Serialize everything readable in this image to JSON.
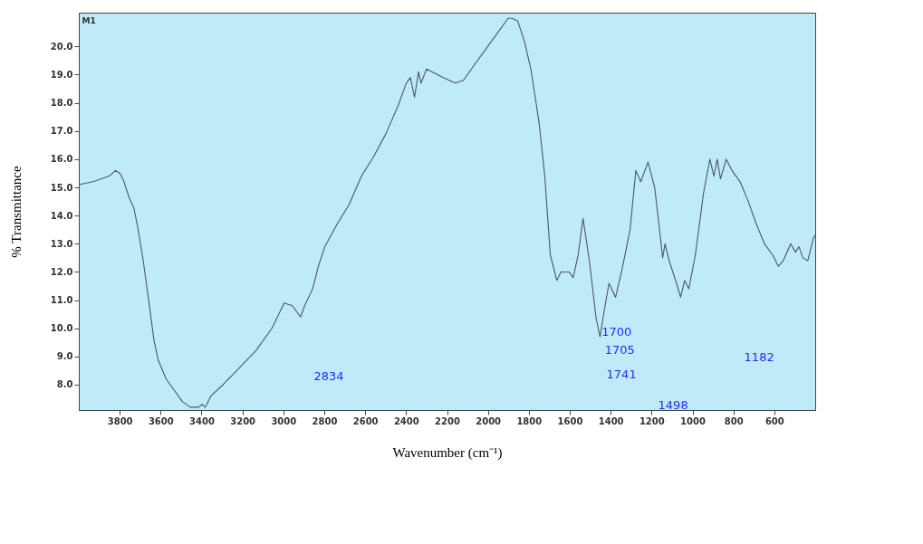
{
  "chart_data": {
    "type": "line",
    "xlabel": "Wavenumber (cm⁻¹)",
    "ylabel": "% Transmittance",
    "xlim": [
      4000,
      400
    ],
    "ylim": [
      7.1,
      21.2
    ],
    "xticks": [
      3800,
      3600,
      3400,
      3200,
      3000,
      2800,
      2600,
      2400,
      2200,
      2000,
      1800,
      1600,
      1400,
      1200,
      1000,
      800,
      600
    ],
    "yticks": [
      {
        "value": 8,
        "label": "8.0"
      },
      {
        "value": 9,
        "label": "9.0"
      },
      {
        "value": 10,
        "label": "10.0"
      },
      {
        "value": 11,
        "label": "11.0"
      },
      {
        "value": 12,
        "label": "12.0"
      },
      {
        "value": 13,
        "label": "13.0"
      },
      {
        "value": 14,
        "label": "14.0"
      },
      {
        "value": 15,
        "label": "15.0"
      },
      {
        "value": 16,
        "label": "16.0"
      },
      {
        "value": 17,
        "label": "17.0"
      },
      {
        "value": 18,
        "label": "18.0"
      },
      {
        "value": 19,
        "label": "19.0"
      },
      {
        "value": 20,
        "label": "20.0"
      }
    ],
    "grid": false,
    "marker": "none",
    "line_style": "solid",
    "x": [
      4000,
      3931,
      3892,
      3852,
      3820,
      3800,
      3784,
      3752,
      3732,
      3712,
      3685,
      3653,
      3633,
      3613,
      3573,
      3533,
      3494,
      3454,
      3414,
      3398,
      3382,
      3354,
      3295,
      3215,
      3135,
      3056,
      2996,
      2956,
      2916,
      2896,
      2857,
      2829,
      2797,
      2737,
      2678,
      2618,
      2558,
      2499,
      2439,
      2399,
      2379,
      2359,
      2339,
      2327,
      2300,
      2220,
      2160,
      2120,
      2061,
      2001,
      1941,
      1901,
      1882,
      1854,
      1822,
      1790,
      1750,
      1722,
      1695,
      1663,
      1643,
      1603,
      1583,
      1559,
      1535,
      1504,
      1472,
      1452,
      1432,
      1408,
      1376,
      1344,
      1305,
      1277,
      1253,
      1217,
      1185,
      1161,
      1146,
      1134,
      1114,
      1074,
      1058,
      1038,
      1018,
      986,
      946,
      915,
      895,
      879,
      863,
      835,
      807,
      767,
      727,
      688,
      648,
      608,
      580,
      556,
      520,
      496,
      480,
      460,
      436,
      409,
      400
    ],
    "series": [
      {
        "color": "#4a5866",
        "values": [
          15.1,
          15.2,
          15.3,
          15.4,
          15.6,
          15.5,
          15.3,
          14.6,
          14.3,
          13.6,
          12.4,
          10.7,
          9.6,
          8.9,
          8.2,
          7.8,
          7.4,
          7.2,
          7.2,
          7.3,
          7.2,
          7.6,
          8.0,
          8.6,
          9.2,
          10.0,
          10.9,
          10.8,
          10.4,
          10.8,
          11.4,
          12.2,
          12.9,
          13.7,
          14.4,
          15.4,
          16.1,
          16.9,
          17.9,
          18.7,
          18.9,
          18.2,
          19.1,
          18.7,
          19.2,
          18.9,
          18.7,
          18.8,
          19.4,
          20.0,
          20.6,
          21.0,
          21.0,
          20.9,
          20.2,
          19.2,
          17.3,
          15.4,
          12.6,
          11.7,
          12.0,
          12.0,
          11.8,
          12.6,
          13.9,
          12.4,
          10.4,
          9.7,
          10.6,
          11.6,
          11.1,
          12.1,
          13.5,
          15.6,
          15.2,
          15.9,
          15.0,
          13.5,
          12.5,
          13.0,
          12.4,
          11.5,
          11.1,
          11.7,
          11.4,
          12.6,
          14.8,
          16.0,
          15.4,
          16.0,
          15.3,
          16.0,
          15.6,
          15.2,
          14.5,
          13.7,
          13.0,
          12.6,
          12.2,
          12.4,
          13.0,
          12.7,
          12.9,
          12.5,
          12.4,
          13.2,
          13.3
        ]
      }
    ],
    "annotations": [
      "M1",
      "2834",
      "1700",
      "1705",
      "1741",
      "1498",
      "1182"
    ]
  }
}
